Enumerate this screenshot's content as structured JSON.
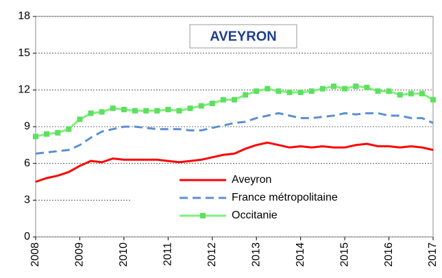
{
  "chart_data": {
    "type": "line",
    "title": "AVEYRON",
    "x": [
      2008,
      2008.25,
      2008.5,
      2008.75,
      2009,
      2009.25,
      2009.5,
      2009.75,
      2010,
      2010.25,
      2010.5,
      2010.75,
      2011,
      2011.25,
      2011.5,
      2011.75,
      2012,
      2012.25,
      2012.5,
      2012.75,
      2013,
      2013.25,
      2013.5,
      2013.75,
      2014,
      2014.25,
      2014.5,
      2014.75,
      2015,
      2015.25,
      2015.5,
      2015.75,
      2016,
      2016.25,
      2016.5,
      2016.75,
      2017
    ],
    "series": [
      {
        "name": "Aveyron",
        "color": "#ff0000",
        "style": "solid",
        "marker": "none",
        "values": [
          4.5,
          4.8,
          5.0,
          5.3,
          5.8,
          6.2,
          6.1,
          6.4,
          6.3,
          6.3,
          6.3,
          6.3,
          6.2,
          6.1,
          6.2,
          6.3,
          6.5,
          6.7,
          6.8,
          7.2,
          7.5,
          7.7,
          7.5,
          7.3,
          7.4,
          7.3,
          7.4,
          7.3,
          7.3,
          7.5,
          7.6,
          7.4,
          7.4,
          7.3,
          7.4,
          7.3,
          7.1
        ]
      },
      {
        "name": "France métropolitaine",
        "color": "#5b8fd1",
        "style": "dashed",
        "marker": "none",
        "values": [
          6.8,
          6.9,
          7.0,
          7.1,
          7.5,
          8.1,
          8.6,
          8.8,
          9.0,
          9.0,
          8.9,
          8.8,
          8.8,
          8.8,
          8.7,
          8.7,
          8.9,
          9.1,
          9.3,
          9.4,
          9.7,
          9.9,
          10.1,
          9.9,
          9.7,
          9.7,
          9.8,
          9.9,
          10.1,
          10.0,
          10.1,
          10.1,
          9.9,
          9.9,
          9.7,
          9.7,
          9.3
        ]
      },
      {
        "name": "Occitanie",
        "color": "#7cf07c",
        "style": "solid",
        "marker": "square",
        "values": [
          8.2,
          8.4,
          8.5,
          8.8,
          9.6,
          10.1,
          10.2,
          10.5,
          10.4,
          10.3,
          10.3,
          10.3,
          10.4,
          10.3,
          10.5,
          10.7,
          10.9,
          11.2,
          11.2,
          11.6,
          11.9,
          12.1,
          11.9,
          11.8,
          11.8,
          11.9,
          12.1,
          12.3,
          12.1,
          12.3,
          12.2,
          11.9,
          11.9,
          11.6,
          11.7,
          11.7,
          11.2
        ]
      }
    ],
    "xlim": [
      2008,
      2017
    ],
    "xticks": [
      2008,
      2009,
      2010,
      2011,
      2012,
      2013,
      2014,
      2015,
      2016,
      2017
    ],
    "ylim": [
      0,
      18
    ],
    "yticks": [
      0,
      3,
      6,
      9,
      12,
      15,
      18
    ],
    "grid": true,
    "legend": "lower right"
  }
}
